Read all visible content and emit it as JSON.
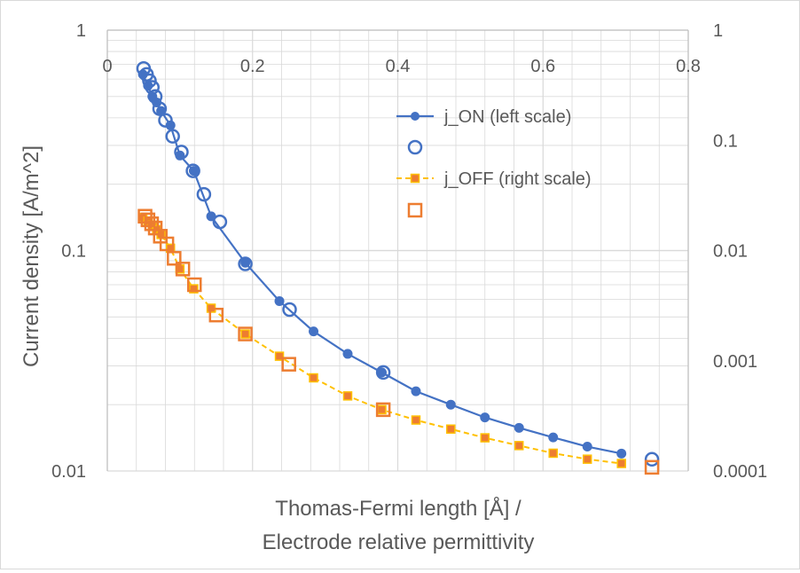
{
  "chart_data": {
    "type": "scatter",
    "xlabel_line1": "Thomas-Fermi length [Å] /",
    "xlabel_line2": "Electrode relative permittivity",
    "ylabel": "Current density [A/m^2]",
    "xlim": [
      0,
      0.8
    ],
    "ylim_left": [
      0.01,
      1
    ],
    "ylim_right": [
      0.0001,
      1
    ],
    "x_ticks": [
      {
        "v": 0,
        "label": "0"
      },
      {
        "v": 0.2,
        "label": "0.2"
      },
      {
        "v": 0.4,
        "label": "0.4"
      },
      {
        "v": 0.6,
        "label": "0.6"
      },
      {
        "v": 0.8,
        "label": "0.8"
      }
    ],
    "y_ticks_left": [
      {
        "v": 1,
        "label": "1"
      },
      {
        "v": 0.1,
        "label": "0.1"
      },
      {
        "v": 0.01,
        "label": "0.01"
      }
    ],
    "y_ticks_right": [
      {
        "v": 1,
        "label": "1"
      },
      {
        "v": 0.1,
        "label": "0.1"
      },
      {
        "v": 0.01,
        "label": "0.01"
      },
      {
        "v": 0.001,
        "label": "0.001"
      },
      {
        "v": 0.0001,
        "label": "0.0001"
      }
    ],
    "colors": {
      "on": "#4472c4",
      "off_line": "#ffc000",
      "off_marker": "#ed7d31",
      "grid": "#d9d9d9"
    },
    "series": [
      {
        "name": "j_ON (left scale)",
        "axis": "left",
        "x": [
          0.049,
          0.056,
          0.062,
          0.068,
          0.074,
          0.087,
          0.1,
          0.119,
          0.143,
          0.19,
          0.237,
          0.284,
          0.331,
          0.378,
          0.425,
          0.473,
          0.52,
          0.567,
          0.614,
          0.661,
          0.708
        ],
        "y": [
          0.63,
          0.56,
          0.5,
          0.47,
          0.43,
          0.37,
          0.27,
          0.23,
          0.143,
          0.088,
          0.059,
          0.043,
          0.034,
          0.028,
          0.023,
          0.02,
          0.0175,
          0.0157,
          0.0142,
          0.0129,
          0.012
        ]
      },
      {
        "name": "j_ON markers",
        "axis": "left",
        "x": [
          0.05,
          0.054,
          0.058,
          0.062,
          0.066,
          0.072,
          0.08,
          0.09,
          0.102,
          0.118,
          0.133,
          0.155,
          0.19,
          0.251,
          0.38,
          0.75
        ],
        "y": [
          0.67,
          0.63,
          0.59,
          0.55,
          0.5,
          0.44,
          0.39,
          0.33,
          0.28,
          0.23,
          0.18,
          0.135,
          0.087,
          0.054,
          0.028,
          0.0113
        ]
      },
      {
        "name": "j_OFF (right scale)",
        "axis": "right",
        "x": [
          0.049,
          0.056,
          0.062,
          0.068,
          0.074,
          0.087,
          0.1,
          0.119,
          0.143,
          0.19,
          0.237,
          0.284,
          0.331,
          0.378,
          0.425,
          0.473,
          0.52,
          0.567,
          0.614,
          0.661,
          0.708
        ],
        "y": [
          0.02,
          0.0185,
          0.017,
          0.0155,
          0.014,
          0.0105,
          0.0068,
          0.0045,
          0.003,
          0.00175,
          0.0011,
          0.0007,
          0.00048,
          0.00036,
          0.00029,
          0.00024,
          0.0002,
          0.00017,
          0.000145,
          0.000128,
          0.000117
        ]
      },
      {
        "name": "j_OFF markers",
        "axis": "right",
        "x": [
          0.052,
          0.056,
          0.061,
          0.066,
          0.073,
          0.082,
          0.092,
          0.104,
          0.12,
          0.15,
          0.19,
          0.25,
          0.38,
          0.75
        ],
        "y": [
          0.0205,
          0.019,
          0.0175,
          0.016,
          0.0135,
          0.0115,
          0.0085,
          0.0068,
          0.0049,
          0.0026,
          0.00175,
          0.00093,
          0.00036,
          0.000108
        ]
      }
    ],
    "legend": [
      {
        "label": "j_ON (left scale)",
        "style": "line-circle-filled"
      },
      {
        "label": "",
        "style": "circle-open"
      },
      {
        "label": "j_OFF (right scale)",
        "style": "dash-square-filled"
      },
      {
        "label": "",
        "style": "square-open"
      }
    ]
  }
}
